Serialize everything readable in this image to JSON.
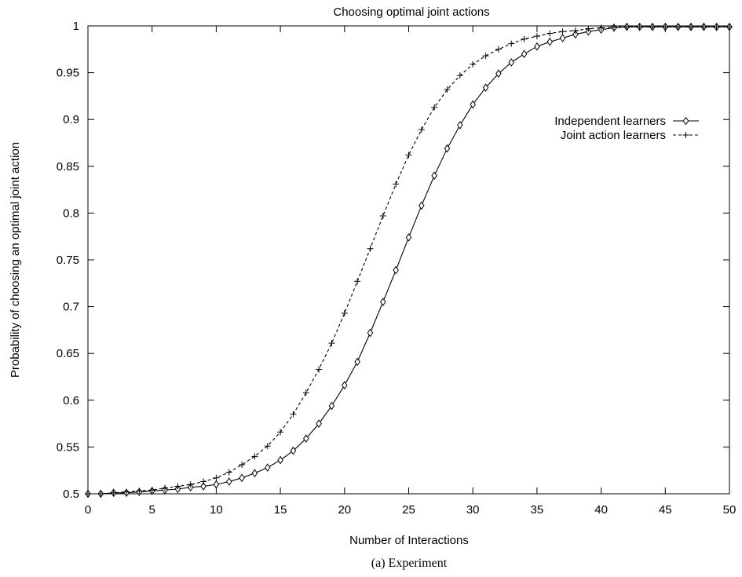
{
  "chart_data": {
    "type": "line",
    "title": "Choosing optimal joint actions",
    "xlabel": "Number of Interactions",
    "ylabel": "Probability of choosing an optimal joint action",
    "caption": "(a) Experiment",
    "xlim": [
      0,
      50
    ],
    "ylim": [
      0.5,
      1
    ],
    "x_ticks": [
      "0",
      "5",
      "10",
      "15",
      "20",
      "25",
      "30",
      "35",
      "40",
      "45",
      "50"
    ],
    "y_ticks": [
      "0.5",
      "0.55",
      "0.6",
      "0.65",
      "0.7",
      "0.75",
      "0.8",
      "0.85",
      "0.9",
      "0.95",
      "1"
    ],
    "grid": false,
    "legend_position": "right",
    "x": [
      0,
      1,
      2,
      3,
      4,
      5,
      6,
      7,
      8,
      9,
      10,
      11,
      12,
      13,
      14,
      15,
      16,
      17,
      18,
      19,
      20,
      21,
      22,
      23,
      24,
      25,
      26,
      27,
      28,
      29,
      30,
      31,
      32,
      33,
      34,
      35,
      36,
      37,
      38,
      39,
      40,
      41,
      42,
      43,
      44,
      45,
      46,
      47,
      48,
      49,
      50
    ],
    "series": [
      {
        "name": "Independent learners",
        "style": "solid",
        "marker": "diamond",
        "values": [
          0.5,
          0.5,
          0.501,
          0.501,
          0.502,
          0.503,
          0.504,
          0.505,
          0.507,
          0.508,
          0.51,
          0.513,
          0.517,
          0.522,
          0.528,
          0.536,
          0.546,
          0.559,
          0.575,
          0.594,
          0.616,
          0.641,
          0.672,
          0.705,
          0.739,
          0.774,
          0.808,
          0.84,
          0.869,
          0.894,
          0.916,
          0.934,
          0.949,
          0.961,
          0.97,
          0.978,
          0.983,
          0.987,
          0.991,
          0.994,
          0.996,
          0.998,
          0.999,
          0.999,
          0.999,
          0.999,
          0.999,
          0.999,
          0.999,
          0.999,
          0.999
        ]
      },
      {
        "name": "Joint action learners",
        "style": "dashed",
        "marker": "plus",
        "values": [
          0.5,
          0.5,
          0.501,
          0.502,
          0.503,
          0.504,
          0.506,
          0.508,
          0.51,
          0.513,
          0.517,
          0.523,
          0.531,
          0.54,
          0.551,
          0.566,
          0.585,
          0.608,
          0.633,
          0.661,
          0.693,
          0.727,
          0.762,
          0.797,
          0.831,
          0.862,
          0.889,
          0.913,
          0.932,
          0.947,
          0.959,
          0.968,
          0.975,
          0.981,
          0.986,
          0.989,
          0.992,
          0.994,
          0.995,
          0.997,
          0.998,
          0.999,
          0.999,
          0.999,
          0.999,
          0.999,
          0.999,
          0.999,
          0.999,
          0.999,
          0.999
        ]
      }
    ]
  }
}
